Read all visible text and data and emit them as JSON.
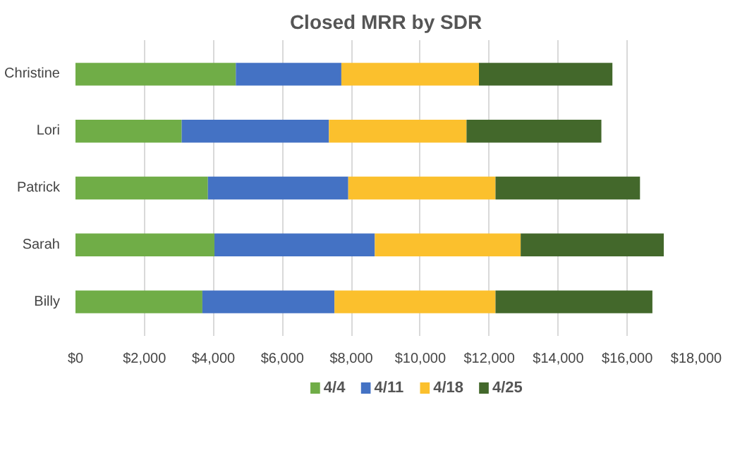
{
  "chart_data": {
    "type": "bar",
    "orientation": "horizontal",
    "stacked": true,
    "title": "Closed MRR by SDR",
    "categories": [
      "Christine",
      "Lori",
      "Patrick",
      "Sarah",
      "Billy"
    ],
    "series": [
      {
        "name": "4/4",
        "color": "#70ad47",
        "values": [
          4650,
          3080,
          3840,
          4030,
          3680
        ]
      },
      {
        "name": "4/11",
        "color": "#4472c4",
        "values": [
          3060,
          4270,
          4070,
          4650,
          3830
        ]
      },
      {
        "name": "4/18",
        "color": "#fbc02d",
        "values": [
          3990,
          3990,
          4270,
          4230,
          4670
        ]
      },
      {
        "name": "4/25",
        "color": "#43682b",
        "values": [
          3870,
          3910,
          4190,
          4150,
          4550
        ]
      }
    ],
    "xlim": [
      0,
      18000
    ],
    "xticks": [
      {
        "value": 0,
        "label": "$0"
      },
      {
        "value": 2000,
        "label": "$2,000"
      },
      {
        "value": 4000,
        "label": "$4,000"
      },
      {
        "value": 6000,
        "label": "$6,000"
      },
      {
        "value": 8000,
        "label": "$8,000"
      },
      {
        "value": 10000,
        "label": "$10,000"
      },
      {
        "value": 12000,
        "label": "$12,000"
      },
      {
        "value": 14000,
        "label": "$14,000"
      },
      {
        "value": 16000,
        "label": "$16,000"
      },
      {
        "value": 18000,
        "label": "$18,000"
      }
    ],
    "grid": "x",
    "legend": "bottom"
  }
}
